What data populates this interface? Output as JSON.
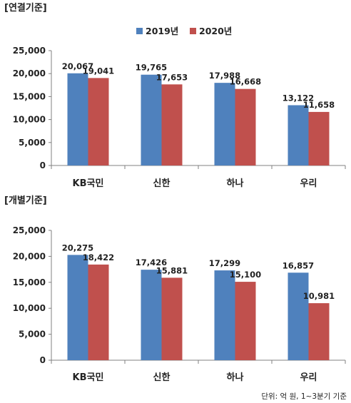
{
  "legend": {
    "labels": [
      "2019년",
      "2020년"
    ]
  },
  "colors": {
    "2019": "#4f81bd",
    "2020": "#c0504d",
    "axis": "#808080",
    "text": "#222222"
  },
  "footer": {
    "note": "단위: 억 원, 1~3분기 기준"
  },
  "chart_data": [
    {
      "type": "bar",
      "title": "[연결기준]",
      "categories": [
        "KB국민",
        "신한",
        "하나",
        "우리"
      ],
      "series": [
        {
          "name": "2019년",
          "values": [
            20067,
            19765,
            17988,
            13122
          ]
        },
        {
          "name": "2020년",
          "values": [
            19041,
            17653,
            16668,
            11658
          ]
        }
      ],
      "data_labels": [
        [
          "20,067",
          "19,765",
          "17,988",
          "13,122"
        ],
        [
          "19,041",
          "17,653",
          "16,668",
          "11,658"
        ]
      ],
      "ylim": [
        0,
        25000
      ],
      "yticks": [
        0,
        5000,
        10000,
        15000,
        20000,
        25000
      ],
      "ytick_labels": [
        "0",
        "5,000",
        "10,000",
        "15,000",
        "20,000",
        "25,000"
      ],
      "legend_position": "top",
      "grid": false
    },
    {
      "type": "bar",
      "title": "[개별기준]",
      "categories": [
        "KB국민",
        "신한",
        "하나",
        "우리"
      ],
      "series": [
        {
          "name": "2019년",
          "values": [
            20275,
            17426,
            17299,
            16857
          ]
        },
        {
          "name": "2020년",
          "values": [
            18422,
            15881,
            15100,
            10981
          ]
        }
      ],
      "data_labels": [
        [
          "20,275",
          "17,426",
          "17,299",
          "16,857"
        ],
        [
          "18,422",
          "15,881",
          "15,100",
          "10,981"
        ]
      ],
      "ylim": [
        0,
        25000
      ],
      "yticks": [
        0,
        5000,
        10000,
        15000,
        20000,
        25000
      ],
      "ytick_labels": [
        "0",
        "5,000",
        "10,000",
        "15,000",
        "20,000",
        "25,000"
      ],
      "legend_position": "none",
      "grid": false
    }
  ]
}
